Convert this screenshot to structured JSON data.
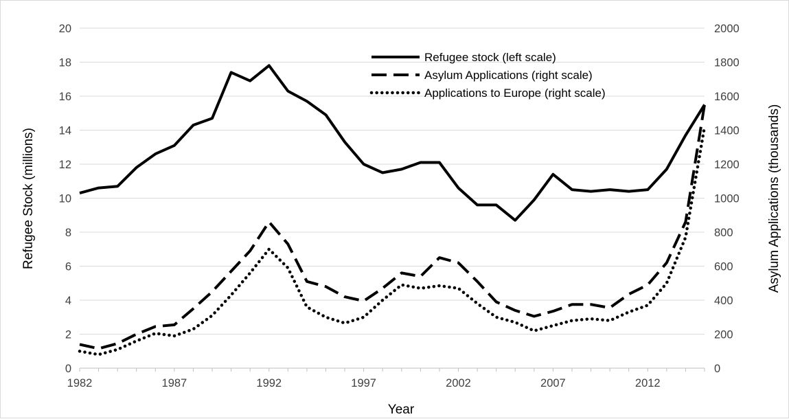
{
  "chart_data": {
    "type": "line",
    "title": "",
    "xlabel": "Year",
    "ylabel": "Refugee Stock (millions)",
    "ylabel_right": "Asylum Applications (thousands)",
    "xlim": [
      1982,
      2015
    ],
    "ylim": [
      0,
      20
    ],
    "ylim_right": [
      0,
      2000
    ],
    "x_ticks": [
      1982,
      1987,
      1992,
      1997,
      2002,
      2007,
      2012
    ],
    "y_ticks_left": [
      0,
      2,
      4,
      6,
      8,
      10,
      12,
      14,
      16,
      18,
      20
    ],
    "y_ticks_right": [
      0,
      200,
      400,
      600,
      800,
      1000,
      1200,
      1400,
      1600,
      1800,
      2000
    ],
    "grid": "horizontal",
    "legend_position": "top-right",
    "x": [
      1982,
      1983,
      1984,
      1985,
      1986,
      1987,
      1988,
      1989,
      1990,
      1991,
      1992,
      1993,
      1994,
      1995,
      1996,
      1997,
      1998,
      1999,
      2000,
      2001,
      2002,
      2003,
      2004,
      2005,
      2006,
      2007,
      2008,
      2009,
      2010,
      2011,
      2012,
      2013,
      2014,
      2015
    ],
    "series": [
      {
        "name": "Refugee stock (left scale)",
        "axis": "left",
        "style": "solid",
        "color": "#000000",
        "values": [
          10.3,
          10.6,
          10.7,
          11.8,
          12.6,
          13.1,
          14.3,
          14.7,
          17.4,
          16.9,
          17.8,
          16.3,
          15.7,
          14.9,
          13.3,
          12.0,
          11.5,
          11.7,
          12.1,
          12.1,
          10.6,
          9.6,
          9.6,
          8.7,
          9.9,
          11.4,
          10.5,
          10.4,
          10.5,
          10.4,
          10.5,
          11.7,
          13.7,
          15.5
        ]
      },
      {
        "name": "Asylum Applications (right scale)",
        "axis": "right",
        "style": "dashed",
        "color": "#000000",
        "values": [
          140,
          115,
          145,
          200,
          245,
          255,
          350,
          450,
          570,
          690,
          860,
          730,
          510,
          480,
          420,
          395,
          470,
          560,
          540,
          650,
          620,
          510,
          390,
          340,
          305,
          335,
          375,
          375,
          355,
          435,
          490,
          620,
          860,
          1550
        ]
      },
      {
        "name": "Applications to Europe (right scale)",
        "axis": "right",
        "style": "dotted",
        "color": "#000000",
        "values": [
          100,
          80,
          110,
          160,
          205,
          190,
          230,
          310,
          430,
          560,
          700,
          590,
          360,
          300,
          265,
          300,
          400,
          490,
          470,
          485,
          470,
          380,
          300,
          270,
          220,
          250,
          280,
          290,
          280,
          330,
          370,
          500,
          770,
          1420
        ]
      }
    ]
  }
}
